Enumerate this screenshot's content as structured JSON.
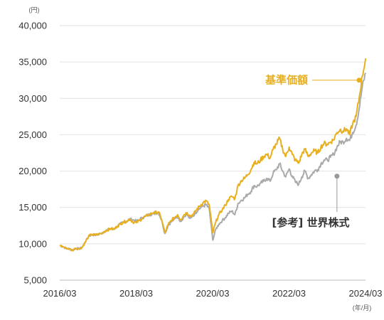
{
  "chart_data": {
    "type": "line",
    "y_unit": "(円)",
    "x_unit": "(年/月)",
    "ylim": [
      5000,
      40000
    ],
    "yticks": [
      5000,
      10000,
      15000,
      20000,
      25000,
      30000,
      35000,
      40000
    ],
    "ytick_labels": [
      "5,000",
      "10,000",
      "15,000",
      "20,000",
      "25,000",
      "30,000",
      "35,000",
      "40,000"
    ],
    "xlim": [
      2016.167,
      2024.167
    ],
    "xticks": [
      2016.167,
      2018.167,
      2020.167,
      2022.167,
      2024.167
    ],
    "xtick_labels": [
      "2016/03",
      "2018/03",
      "2020/03",
      "2022/03",
      "2024/03"
    ],
    "grid": true,
    "series": [
      {
        "name": "基準価額",
        "color": "#e8b020",
        "points": [
          [
            2016.17,
            9800
          ],
          [
            2016.25,
            9600
          ],
          [
            2016.33,
            9400
          ],
          [
            2016.42,
            9300
          ],
          [
            2016.5,
            9100
          ],
          [
            2016.58,
            9400
          ],
          [
            2016.67,
            9300
          ],
          [
            2016.75,
            9500
          ],
          [
            2016.83,
            10200
          ],
          [
            2016.92,
            11000
          ],
          [
            2017.0,
            11300
          ],
          [
            2017.08,
            11200
          ],
          [
            2017.17,
            11300
          ],
          [
            2017.25,
            11400
          ],
          [
            2017.33,
            11700
          ],
          [
            2017.42,
            11900
          ],
          [
            2017.5,
            12100
          ],
          [
            2017.58,
            12000
          ],
          [
            2017.67,
            12400
          ],
          [
            2017.75,
            12700
          ],
          [
            2017.83,
            13000
          ],
          [
            2017.92,
            13100
          ],
          [
            2018.0,
            13400
          ],
          [
            2018.08,
            13000
          ],
          [
            2018.17,
            12900
          ],
          [
            2018.25,
            13200
          ],
          [
            2018.33,
            13500
          ],
          [
            2018.42,
            13800
          ],
          [
            2018.5,
            14000
          ],
          [
            2018.58,
            14200
          ],
          [
            2018.67,
            14300
          ],
          [
            2018.75,
            14400
          ],
          [
            2018.83,
            13400
          ],
          [
            2018.92,
            11500
          ],
          [
            2019.0,
            12600
          ],
          [
            2019.08,
            13200
          ],
          [
            2019.17,
            13600
          ],
          [
            2019.25,
            14000
          ],
          [
            2019.33,
            13300
          ],
          [
            2019.42,
            14000
          ],
          [
            2019.5,
            14300
          ],
          [
            2019.58,
            13800
          ],
          [
            2019.67,
            14100
          ],
          [
            2019.75,
            14700
          ],
          [
            2019.83,
            15200
          ],
          [
            2019.92,
            15700
          ],
          [
            2020.0,
            15900
          ],
          [
            2020.08,
            15300
          ],
          [
            2020.17,
            11500
          ],
          [
            2020.25,
            13000
          ],
          [
            2020.33,
            14000
          ],
          [
            2020.42,
            14700
          ],
          [
            2020.5,
            15300
          ],
          [
            2020.58,
            16100
          ],
          [
            2020.67,
            16500
          ],
          [
            2020.75,
            16200
          ],
          [
            2020.83,
            18000
          ],
          [
            2020.92,
            18700
          ],
          [
            2021.0,
            19000
          ],
          [
            2021.08,
            19500
          ],
          [
            2021.17,
            20200
          ],
          [
            2021.25,
            21200
          ],
          [
            2021.33,
            21000
          ],
          [
            2021.42,
            21500
          ],
          [
            2021.5,
            22000
          ],
          [
            2021.58,
            22300
          ],
          [
            2021.67,
            21800
          ],
          [
            2021.75,
            23000
          ],
          [
            2021.83,
            23700
          ],
          [
            2021.92,
            24500
          ],
          [
            2022.0,
            23000
          ],
          [
            2022.08,
            22000
          ],
          [
            2022.17,
            23300
          ],
          [
            2022.25,
            22300
          ],
          [
            2022.33,
            21500
          ],
          [
            2022.42,
            21100
          ],
          [
            2022.5,
            22300
          ],
          [
            2022.58,
            23000
          ],
          [
            2022.67,
            22000
          ],
          [
            2022.75,
            22500
          ],
          [
            2022.83,
            22800
          ],
          [
            2022.92,
            22500
          ],
          [
            2023.0,
            23300
          ],
          [
            2023.08,
            23800
          ],
          [
            2023.17,
            23700
          ],
          [
            2023.25,
            24000
          ],
          [
            2023.33,
            24300
          ],
          [
            2023.42,
            25300
          ],
          [
            2023.5,
            25700
          ],
          [
            2023.58,
            25500
          ],
          [
            2023.67,
            25800
          ],
          [
            2023.75,
            25000
          ],
          [
            2023.83,
            26500
          ],
          [
            2023.92,
            27500
          ],
          [
            2024.0,
            30000
          ],
          [
            2024.08,
            33000
          ],
          [
            2024.17,
            35500
          ]
        ]
      },
      {
        "name": "[参考] 世界株式",
        "color": "#aaaaaa",
        "points": [
          [
            2016.17,
            9800
          ],
          [
            2016.25,
            9600
          ],
          [
            2016.33,
            9400
          ],
          [
            2016.42,
            9300
          ],
          [
            2016.5,
            9100
          ],
          [
            2016.58,
            9400
          ],
          [
            2016.67,
            9300
          ],
          [
            2016.75,
            9500
          ],
          [
            2016.83,
            10200
          ],
          [
            2016.92,
            11000
          ],
          [
            2017.0,
            11300
          ],
          [
            2017.08,
            11200
          ],
          [
            2017.17,
            11300
          ],
          [
            2017.25,
            11400
          ],
          [
            2017.33,
            11700
          ],
          [
            2017.42,
            11900
          ],
          [
            2017.5,
            12100
          ],
          [
            2017.58,
            12000
          ],
          [
            2017.67,
            12400
          ],
          [
            2017.75,
            12700
          ],
          [
            2017.83,
            13000
          ],
          [
            2017.92,
            13100
          ],
          [
            2018.0,
            13400
          ],
          [
            2018.08,
            13300
          ],
          [
            2018.17,
            13100
          ],
          [
            2018.25,
            13300
          ],
          [
            2018.33,
            13600
          ],
          [
            2018.42,
            13800
          ],
          [
            2018.5,
            14000
          ],
          [
            2018.58,
            14100
          ],
          [
            2018.67,
            14200
          ],
          [
            2018.75,
            14300
          ],
          [
            2018.83,
            13300
          ],
          [
            2018.92,
            11400
          ],
          [
            2019.0,
            12500
          ],
          [
            2019.08,
            13000
          ],
          [
            2019.17,
            13400
          ],
          [
            2019.25,
            13800
          ],
          [
            2019.33,
            13100
          ],
          [
            2019.42,
            13700
          ],
          [
            2019.5,
            14000
          ],
          [
            2019.58,
            13500
          ],
          [
            2019.67,
            13800
          ],
          [
            2019.75,
            14300
          ],
          [
            2019.83,
            14800
          ],
          [
            2019.92,
            15200
          ],
          [
            2020.0,
            15400
          ],
          [
            2020.08,
            14800
          ],
          [
            2020.17,
            10500
          ],
          [
            2020.25,
            12000
          ],
          [
            2020.33,
            12700
          ],
          [
            2020.42,
            13200
          ],
          [
            2020.5,
            13600
          ],
          [
            2020.58,
            14200
          ],
          [
            2020.67,
            14500
          ],
          [
            2020.75,
            14000
          ],
          [
            2020.83,
            15500
          ],
          [
            2020.92,
            16000
          ],
          [
            2021.0,
            16300
          ],
          [
            2021.08,
            16800
          ],
          [
            2021.17,
            17200
          ],
          [
            2021.25,
            18000
          ],
          [
            2021.33,
            17900
          ],
          [
            2021.42,
            18300
          ],
          [
            2021.5,
            18600
          ],
          [
            2021.58,
            19000
          ],
          [
            2021.67,
            18600
          ],
          [
            2021.75,
            19700
          ],
          [
            2021.83,
            20200
          ],
          [
            2021.92,
            21000
          ],
          [
            2022.0,
            20000
          ],
          [
            2022.08,
            19200
          ],
          [
            2022.17,
            20300
          ],
          [
            2022.25,
            19300
          ],
          [
            2022.33,
            18500
          ],
          [
            2022.42,
            18200
          ],
          [
            2022.5,
            19200
          ],
          [
            2022.58,
            20000
          ],
          [
            2022.67,
            19000
          ],
          [
            2022.75,
            19500
          ],
          [
            2022.83,
            20000
          ],
          [
            2022.92,
            20200
          ],
          [
            2023.0,
            21000
          ],
          [
            2023.08,
            21500
          ],
          [
            2023.17,
            21500
          ],
          [
            2023.25,
            21900
          ],
          [
            2023.33,
            22300
          ],
          [
            2023.42,
            23300
          ],
          [
            2023.5,
            24000
          ],
          [
            2023.58,
            24000
          ],
          [
            2023.67,
            24500
          ],
          [
            2023.75,
            24200
          ],
          [
            2023.83,
            25300
          ],
          [
            2023.92,
            26300
          ],
          [
            2024.0,
            28500
          ],
          [
            2024.08,
            31500
          ],
          [
            2024.17,
            33500
          ]
        ]
      }
    ],
    "annotations": [
      {
        "series": 0,
        "label": "基準価額",
        "at": [
          2024.0,
          32500
        ]
      },
      {
        "series": 1,
        "label": "[参考] 世界株式",
        "at": [
          2023.42,
          19300
        ]
      }
    ]
  }
}
